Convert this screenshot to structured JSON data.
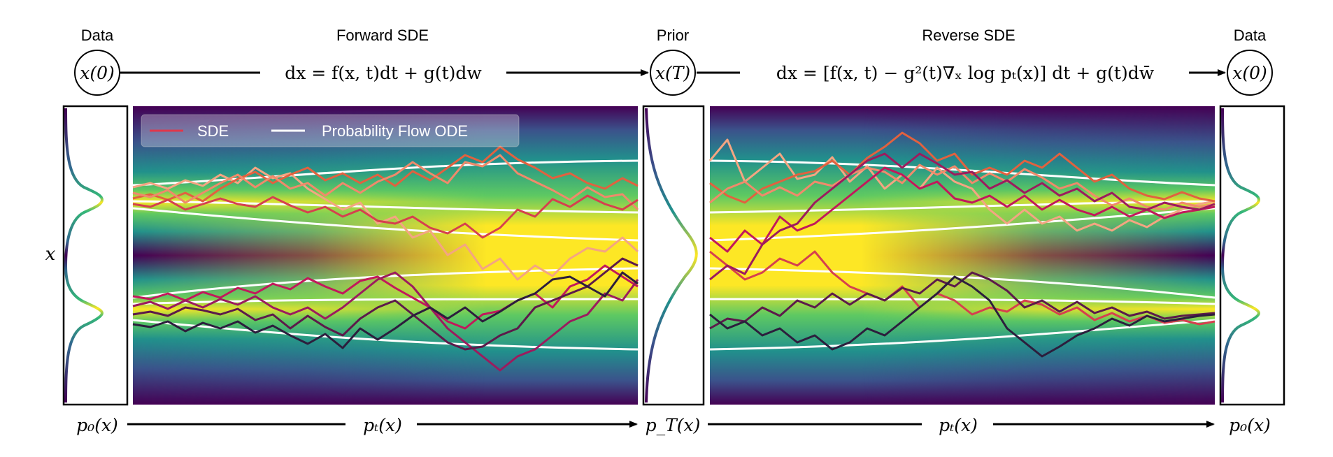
{
  "headers": {
    "data_left": "Data",
    "forward": "Forward SDE",
    "prior": "Prior",
    "reverse": "Reverse SDE",
    "data_right": "Data"
  },
  "nodes": {
    "x0_left": "x(0)",
    "xT": "x(T)",
    "x0_right": "x(0)"
  },
  "equations": {
    "forward": "dx = f(x, t)dt + g(t)dw",
    "reverse": "dx = [f(x, t) − g²(t)∇ₓ log pₜ(x)] dt + g(t)dw̄"
  },
  "axis_label": "x",
  "bottom_labels": {
    "p0_left": "p₀(x)",
    "pt_left": "pₜ(x)",
    "pT": "p_T(x)",
    "pt_right": "pₜ(x)",
    "p0_right": "p₀(x)"
  },
  "legend": {
    "sde": "SDE",
    "ode": "Probability Flow ODE"
  },
  "colors": {
    "sde_line": "#e0374b",
    "ode_line": "#ffffff",
    "viridis_low": "#440154",
    "viridis_mid": "#21918c",
    "viridis_high": "#fde725"
  }
}
